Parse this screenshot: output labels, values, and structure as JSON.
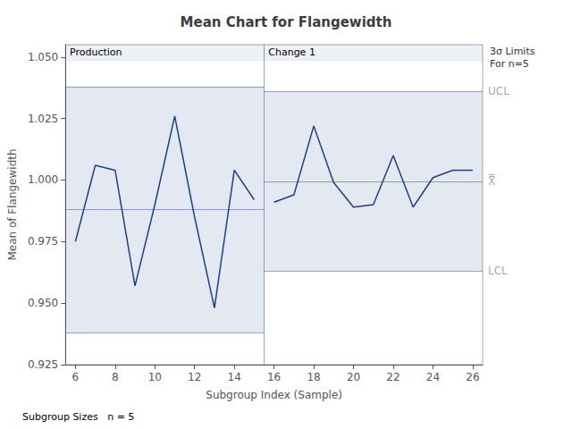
{
  "chart_data": {
    "type": "line",
    "title": "Mean Chart for Flangewidth",
    "xlabel": "Subgroup Index (Sample)",
    "ylabel": "Mean of Flangewidth",
    "footnote": "Subgroup Sizes   n = 5",
    "color": "#1a3f8f",
    "xlim": [
      5.5,
      26.5
    ],
    "ylim": [
      0.925,
      1.055
    ],
    "xticks": [
      6,
      8,
      10,
      12,
      14,
      16,
      18,
      20,
      22,
      24,
      26
    ],
    "yticks": [
      0.925,
      {
        "value": 0.95,
        "label": "0.950"
      },
      0.975,
      {
        "value": 1.0,
        "label": "1.000"
      },
      1.025,
      {
        "value": 1.05,
        "label": "1.050"
      }
    ],
    "grid": false,
    "phase_split_x": 15.5,
    "phases": [
      {
        "label": "Production",
        "x": [
          6,
          7,
          8,
          9,
          10,
          11,
          12,
          13,
          14,
          15
        ],
        "values": [
          0.975,
          1.006,
          1.004,
          0.957,
          0.99,
          1.026,
          0.985,
          0.948,
          1.004,
          0.992
        ],
        "ucl": 1.038,
        "lcl": 0.938,
        "mean": 0.988
      },
      {
        "label": "Change 1",
        "x": [
          16,
          17,
          18,
          19,
          20,
          21,
          22,
          23,
          24,
          25,
          26
        ],
        "values": [
          0.991,
          0.994,
          1.022,
          0.999,
          0.989,
          0.99,
          1.01,
          0.989,
          1.001,
          1.004,
          1.004
        ],
        "ucl": 1.036,
        "lcl": 0.963,
        "mean": 0.9995
      }
    ],
    "annotations": {
      "note": "3σ Limits\nFor n=5",
      "ucl": "UCL",
      "mean": "X̿",
      "lcl": "LCL"
    }
  }
}
